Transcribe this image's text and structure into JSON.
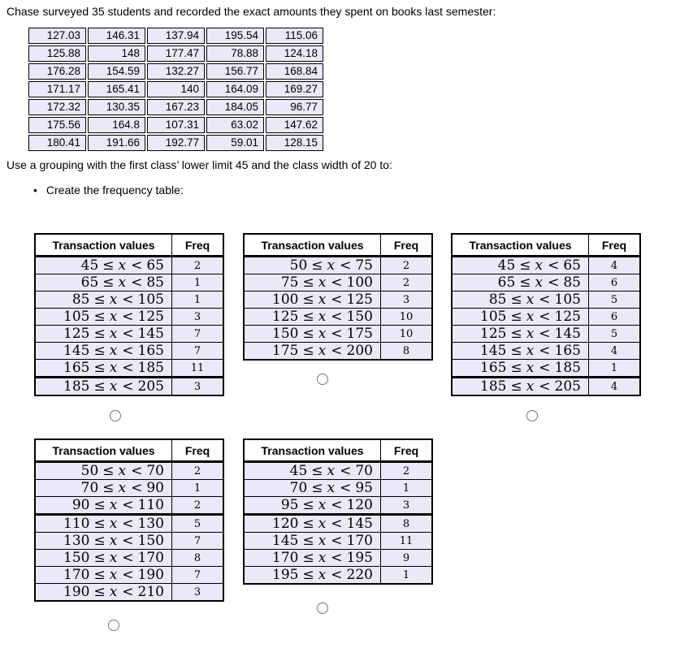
{
  "question": {
    "intro": "Chase surveyed 35 students and recorded the exact amounts they spent on books last semester:",
    "instruction": "Use a grouping with the first class’ lower limit 45 and the class width of 20 to:",
    "bullet_marker": "•",
    "bullet": "Create the frequency table:"
  },
  "amounts_table": {
    "rows": [
      [
        "127.03",
        "146.31",
        "137.94",
        "195.54",
        "115.06"
      ],
      [
        "125.88",
        "148",
        "177.47",
        "78.88",
        "124.18"
      ],
      [
        "176.28",
        "154.59",
        "132.27",
        "156.77",
        "168.84"
      ],
      [
        "171.17",
        "165.41",
        "140",
        "164.09",
        "169.27"
      ],
      [
        "172.32",
        "130.35",
        "167.23",
        "184.05",
        "96.77"
      ],
      [
        "175.56",
        "164.8",
        "107.31",
        "63.02",
        "147.62"
      ],
      [
        "180.41",
        "191.66",
        "192.77",
        "59.01",
        "128.15"
      ]
    ]
  },
  "math": {
    "leq": "≤",
    "lt": "<",
    "variable": "x"
  },
  "colors": {
    "cell_bg": "#e9e9f8",
    "table_border": "#000000",
    "radio_border": "#757575"
  },
  "options": [
    {
      "id": "A",
      "selected": false,
      "headers": [
        "Transaction values",
        "Freq"
      ],
      "rows": [
        {
          "lower": "45",
          "upper": "65",
          "freq": "2",
          "thick": false
        },
        {
          "lower": "65",
          "upper": "85",
          "freq": "1",
          "thick": false
        },
        {
          "lower": "85",
          "upper": "105",
          "freq": "1",
          "thick": false
        },
        {
          "lower": "105",
          "upper": "125",
          "freq": "3",
          "thick": false
        },
        {
          "lower": "125",
          "upper": "145",
          "freq": "7",
          "thick": false
        },
        {
          "lower": "145",
          "upper": "165",
          "freq": "7",
          "thick": false
        },
        {
          "lower": "165",
          "upper": "185",
          "freq": "11",
          "thick": false
        },
        {
          "lower": "185",
          "upper": "205",
          "freq": "3",
          "thick": true
        }
      ]
    },
    {
      "id": "B",
      "selected": false,
      "headers": [
        "Transaction values",
        "Freq"
      ],
      "rows": [
        {
          "lower": "50",
          "upper": "75",
          "freq": "2",
          "thick": false
        },
        {
          "lower": "75",
          "upper": "100",
          "freq": "2",
          "thick": false
        },
        {
          "lower": "100",
          "upper": "125",
          "freq": "3",
          "thick": false
        },
        {
          "lower": "125",
          "upper": "150",
          "freq": "10",
          "thick": false
        },
        {
          "lower": "150",
          "upper": "175",
          "freq": "10",
          "thick": false
        },
        {
          "lower": "175",
          "upper": "200",
          "freq": "8",
          "thick": false
        }
      ]
    },
    {
      "id": "C",
      "selected": false,
      "headers": [
        "Transaction values",
        "Freq"
      ],
      "rows": [
        {
          "lower": "45",
          "upper": "65",
          "freq": "4",
          "thick": false
        },
        {
          "lower": "65",
          "upper": "85",
          "freq": "6",
          "thick": false
        },
        {
          "lower": "85",
          "upper": "105",
          "freq": "5",
          "thick": false
        },
        {
          "lower": "105",
          "upper": "125",
          "freq": "6",
          "thick": false
        },
        {
          "lower": "125",
          "upper": "145",
          "freq": "5",
          "thick": false
        },
        {
          "lower": "145",
          "upper": "165",
          "freq": "4",
          "thick": false
        },
        {
          "lower": "165",
          "upper": "185",
          "freq": "1",
          "thick": false
        },
        {
          "lower": "185",
          "upper": "205",
          "freq": "4",
          "thick": true
        }
      ]
    },
    {
      "id": "D",
      "selected": false,
      "headers": [
        "Transaction values",
        "Freq"
      ],
      "rows": [
        {
          "lower": "50",
          "upper": "70",
          "freq": "2",
          "thick": false
        },
        {
          "lower": "70",
          "upper": "90",
          "freq": "1",
          "thick": false
        },
        {
          "lower": "90",
          "upper": "110",
          "freq": "2",
          "thick": false
        },
        {
          "lower": "110",
          "upper": "130",
          "freq": "5",
          "thick": true
        },
        {
          "lower": "130",
          "upper": "150",
          "freq": "7",
          "thick": false
        },
        {
          "lower": "150",
          "upper": "170",
          "freq": "8",
          "thick": false
        },
        {
          "lower": "170",
          "upper": "190",
          "freq": "7",
          "thick": false
        },
        {
          "lower": "190",
          "upper": "210",
          "freq": "3",
          "thick": false
        }
      ]
    },
    {
      "id": "E",
      "selected": false,
      "headers": [
        "Transaction values",
        "Freq"
      ],
      "rows": [
        {
          "lower": "45",
          "upper": "70",
          "freq": "2",
          "thick": false
        },
        {
          "lower": "70",
          "upper": "95",
          "freq": "1",
          "thick": false
        },
        {
          "lower": "95",
          "upper": "120",
          "freq": "3",
          "thick": false
        },
        {
          "lower": "120",
          "upper": "145",
          "freq": "8",
          "thick": true
        },
        {
          "lower": "145",
          "upper": "170",
          "freq": "11",
          "thick": false
        },
        {
          "lower": "170",
          "upper": "195",
          "freq": "9",
          "thick": false
        },
        {
          "lower": "195",
          "upper": "220",
          "freq": "1",
          "thick": false
        }
      ]
    }
  ]
}
